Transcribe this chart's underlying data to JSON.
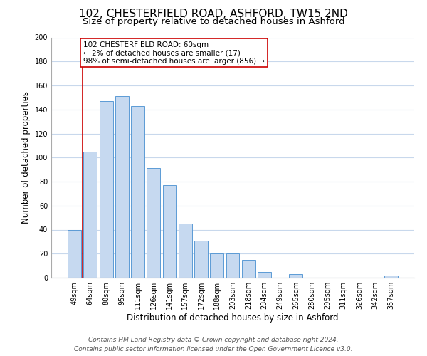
{
  "title": "102, CHESTERFIELD ROAD, ASHFORD, TW15 2ND",
  "subtitle": "Size of property relative to detached houses in Ashford",
  "xlabel": "Distribution of detached houses by size in Ashford",
  "ylabel": "Number of detached properties",
  "bar_labels": [
    "49sqm",
    "64sqm",
    "80sqm",
    "95sqm",
    "111sqm",
    "126sqm",
    "141sqm",
    "157sqm",
    "172sqm",
    "188sqm",
    "203sqm",
    "218sqm",
    "234sqm",
    "249sqm",
    "265sqm",
    "280sqm",
    "295sqm",
    "311sqm",
    "326sqm",
    "342sqm",
    "357sqm"
  ],
  "bar_values": [
    40,
    105,
    147,
    151,
    143,
    91,
    77,
    45,
    31,
    20,
    20,
    15,
    5,
    0,
    3,
    0,
    0,
    0,
    0,
    0,
    2
  ],
  "bar_color": "#c6d9f0",
  "bar_edge_color": "#5b9bd5",
  "highlight_color": "#cc0000",
  "ylim": [
    0,
    200
  ],
  "yticks": [
    0,
    20,
    40,
    60,
    80,
    100,
    120,
    140,
    160,
    180,
    200
  ],
  "annotation_line1": "102 CHESTERFIELD ROAD: 60sqm",
  "annotation_line2": "← 2% of detached houses are smaller (17)",
  "annotation_line3": "98% of semi-detached houses are larger (856) →",
  "footer_line1": "Contains HM Land Registry data © Crown copyright and database right 2024.",
  "footer_line2": "Contains public sector information licensed under the Open Government Licence v3.0.",
  "background_color": "#ffffff",
  "grid_color": "#c8d8ec",
  "title_fontsize": 11,
  "subtitle_fontsize": 9.5,
  "axis_label_fontsize": 8.5,
  "tick_fontsize": 7,
  "annotation_fontsize": 7.5,
  "footer_fontsize": 6.5
}
